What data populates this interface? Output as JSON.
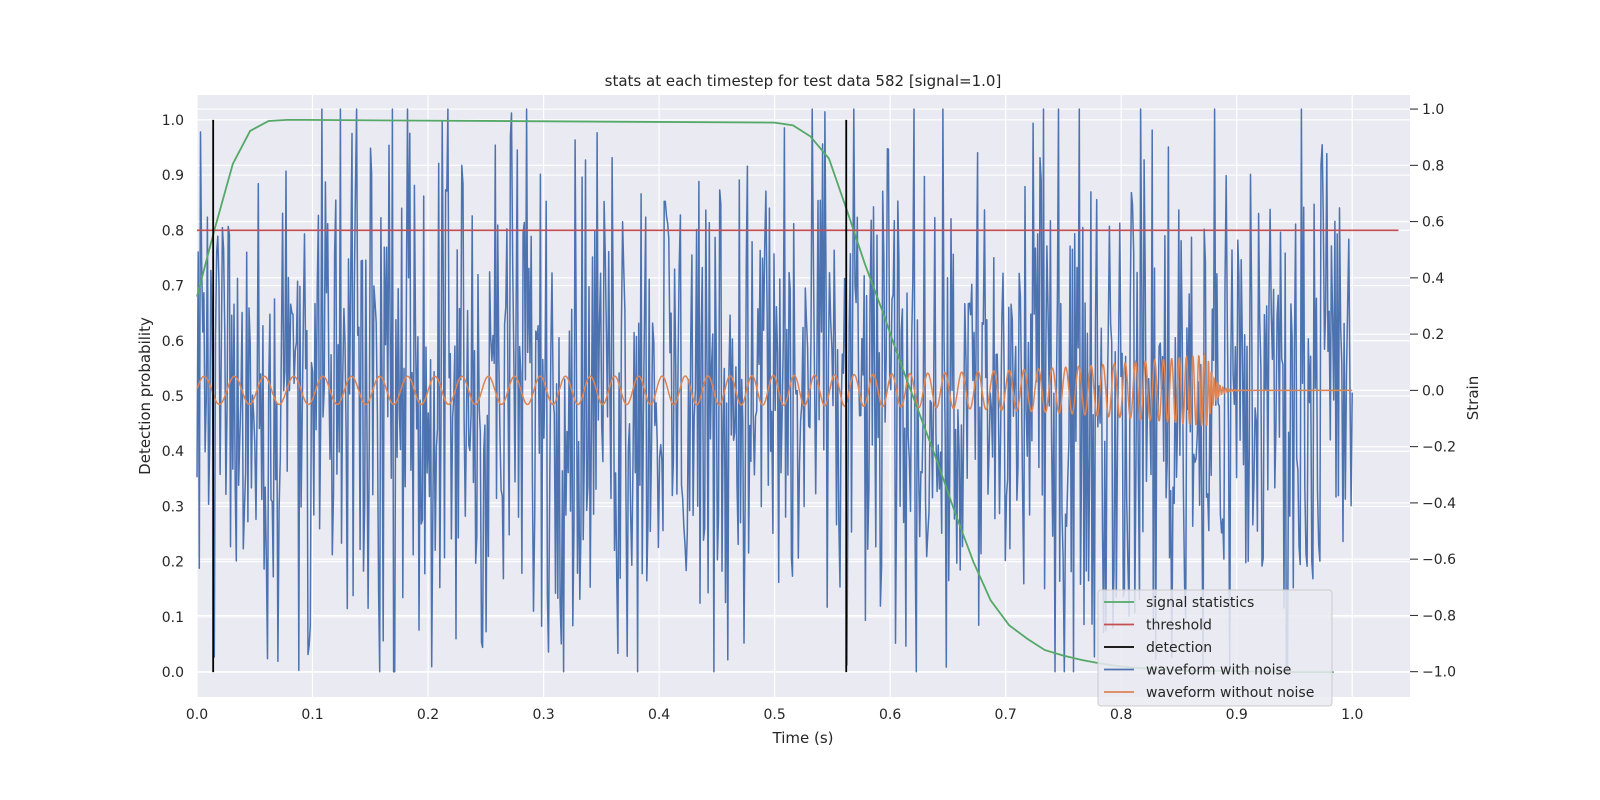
{
  "chart_data": {
    "type": "line",
    "title": "stats at each timestep for test data 582 [signal=1.0]",
    "xlabel": "Time (s)",
    "ylabel_left": "Detection probability",
    "ylabel_right": "Strain",
    "xlim": [
      0.0,
      1.05
    ],
    "ylim_left": [
      -0.045,
      1.045
    ],
    "ylim_right": [
      -1.09,
      1.05
    ],
    "xticks": [
      0.0,
      0.1,
      0.2,
      0.3,
      0.4,
      0.5,
      0.6,
      0.7,
      0.8,
      0.9,
      1.0
    ],
    "yticks_left": [
      0.0,
      0.1,
      0.2,
      0.3,
      0.4,
      0.5,
      0.6,
      0.7,
      0.8,
      0.9,
      1.0
    ],
    "yticks_right": [
      -1.0,
      -0.8,
      -0.6,
      -0.4,
      -0.2,
      0.0,
      0.2,
      0.4,
      0.6,
      0.8,
      1.0
    ],
    "grid": true,
    "legend_position": "lower right",
    "colors": {
      "signal_statistics": "#55a868",
      "threshold": "#c44e52",
      "detection": "#000000",
      "waveform_with_noise": "#4c72b0",
      "waveform_without_noise": "#dd8452",
      "background": "#eaeaf2",
      "grid": "#ffffff"
    },
    "series": [
      {
        "name": "signal statistics",
        "axis": "left",
        "x": [
          0.0,
          0.015,
          0.031,
          0.046,
          0.062,
          0.078,
          0.093,
          0.5,
          0.516,
          0.531,
          0.547,
          0.562,
          0.578,
          0.594,
          0.609,
          0.625,
          0.641,
          0.656,
          0.672,
          0.687,
          0.703,
          0.719,
          0.734,
          0.75,
          0.766,
          0.781,
          0.797,
          0.812,
          0.828,
          0.844,
          0.859,
          0.875,
          0.89,
          0.906,
          0.922,
          0.937,
          0.953,
          0.969,
          0.984
        ],
        "y": [
          0.68,
          0.8,
          0.92,
          0.98,
          0.998,
          1.0,
          1.0,
          0.995,
          0.99,
          0.97,
          0.93,
          0.84,
          0.74,
          0.65,
          0.56,
          0.47,
          0.38,
          0.29,
          0.2,
          0.13,
          0.085,
          0.06,
          0.04,
          0.03,
          0.022,
          0.016,
          0.011,
          0.008,
          0.006,
          0.004,
          0.003,
          0.002,
          0.002,
          0.001,
          0.001,
          0.001,
          0.0,
          0.0,
          0.0
        ]
      },
      {
        "name": "threshold",
        "axis": "left",
        "x": [
          0.0,
          1.04
        ],
        "y": [
          0.8,
          0.8
        ]
      },
      {
        "name": "detection",
        "axis": "left",
        "x_values": [
          0.014,
          0.562
        ],
        "y_range": [
          0.0,
          1.0
        ]
      },
      {
        "name": "waveform with noise",
        "axis": "right",
        "x_range": [
          0.0,
          1.0
        ],
        "amplitude_range": [
          -1.0,
          1.0
        ],
        "points": 1000
      },
      {
        "name": "waveform without noise",
        "axis": "right",
        "x_range": [
          0.0,
          1.0
        ],
        "amplitude_start": 0.05,
        "amplitude_peak": 0.13,
        "merger_time": 0.875,
        "ringdown_level": 0.0
      }
    ],
    "legend": [
      {
        "label": "signal statistics",
        "color": "#55a868"
      },
      {
        "label": "threshold",
        "color": "#c44e52"
      },
      {
        "label": "detection",
        "color": "#000000"
      },
      {
        "label": "waveform with noise",
        "color": "#4c72b0"
      },
      {
        "label": "waveform without noise",
        "color": "#dd8452"
      }
    ]
  }
}
